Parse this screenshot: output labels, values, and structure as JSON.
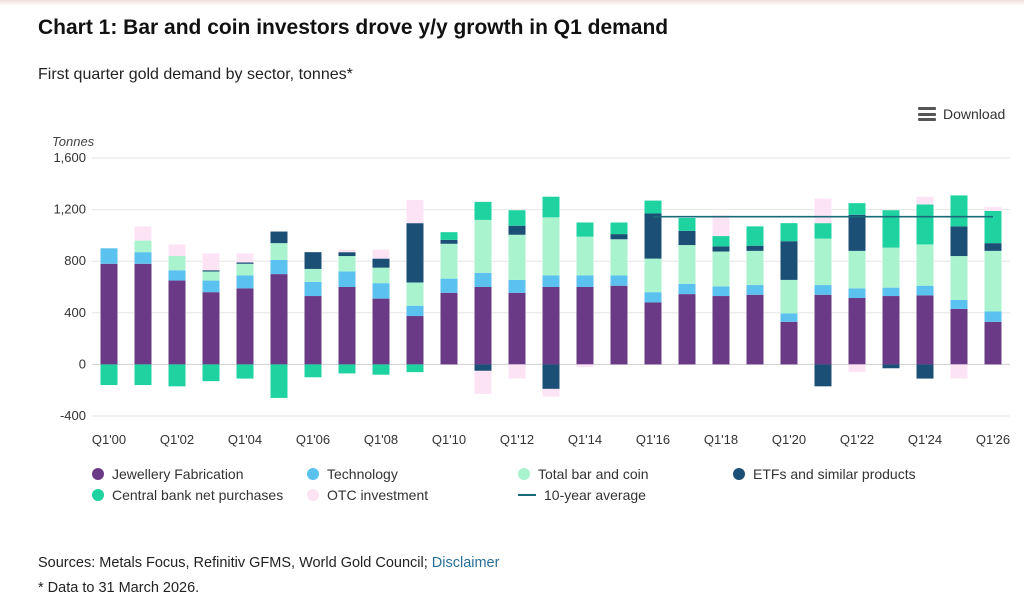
{
  "title": "Chart 1: Bar and coin investors drove y/y growth in Q1 demand",
  "subtitle": "First quarter gold demand by sector, tonnes*",
  "download_label": "Download",
  "sources_text": "Sources: Metals Focus, Refinitiv GFMS, World Gold Council; ",
  "disclaimer_label": "Disclaimer",
  "footnote": "* Data to 31 March 2026.",
  "colors": {
    "jewellery": "#6b3a87",
    "technology": "#5bc2ef",
    "barcoin": "#a9f3cf",
    "etf": "#1c4f75",
    "central_bank": "#1fd3a0",
    "otc": "#fde4f5",
    "average": "#1a6b7a"
  },
  "chart_data": {
    "type": "bar",
    "stacked": true,
    "title": "Chart 1: Bar and coin investors drove y/y growth in Q1 demand",
    "subtitle": "First quarter gold demand by sector, tonnes*",
    "ylabel": "Tonnes",
    "xlabel": "",
    "ylim": [
      -400,
      1600
    ],
    "yticks": [
      1600,
      1200,
      800,
      400,
      0,
      -400
    ],
    "ytick_labels": [
      "1,600",
      "1,200",
      "800",
      "400",
      "0",
      "-400"
    ],
    "categories": [
      "Q1'00",
      "Q1'01",
      "Q1'02",
      "Q1'03",
      "Q1'04",
      "Q1'05",
      "Q1'06",
      "Q1'07",
      "Q1'08",
      "Q1'09",
      "Q1'10",
      "Q1'11",
      "Q1'12",
      "Q1'13",
      "Q1'14",
      "Q1'15",
      "Q1'16",
      "Q1'17",
      "Q1'18",
      "Q1'19",
      "Q1'20",
      "Q1'21",
      "Q1'22",
      "Q1'23",
      "Q1'24",
      "Q1'25",
      "Q1'26"
    ],
    "xtick_labels": [
      "Q1'00",
      "Q1'02",
      "Q1'04",
      "Q1'06",
      "Q1'08",
      "Q1'10",
      "Q1'12",
      "Q1'14",
      "Q1'16",
      "Q1'18",
      "Q1'20",
      "Q1'22",
      "Q1'24",
      "Q1'26"
    ],
    "series": [
      {
        "name": "Jewellery Fabrication",
        "key": "jewellery",
        "values": [
          780,
          780,
          650,
          560,
          590,
          700,
          530,
          600,
          510,
          375,
          555,
          600,
          555,
          600,
          600,
          610,
          480,
          545,
          530,
          540,
          330,
          540,
          515,
          530,
          535,
          430,
          330
        ]
      },
      {
        "name": "Technology",
        "key": "technology",
        "values": [
          120,
          90,
          80,
          90,
          100,
          110,
          110,
          120,
          120,
          80,
          110,
          110,
          100,
          90,
          90,
          80,
          80,
          80,
          75,
          75,
          65,
          75,
          75,
          65,
          75,
          70,
          80
        ]
      },
      {
        "name": "Total bar and coin",
        "key": "barcoin",
        "values": [
          0,
          90,
          110,
          70,
          90,
          130,
          100,
          120,
          120,
          180,
          270,
          410,
          350,
          450,
          300,
          280,
          260,
          300,
          270,
          265,
          260,
          360,
          290,
          310,
          320,
          340,
          470
        ]
      },
      {
        "name": "ETFs and similar products",
        "key": "etf",
        "values": [
          0,
          0,
          0,
          10,
          10,
          90,
          130,
          30,
          70,
          460,
          30,
          -50,
          70,
          -190,
          0,
          40,
          350,
          110,
          40,
          40,
          300,
          -170,
          280,
          -30,
          -110,
          230,
          60
        ]
      },
      {
        "name": "Central bank net purchases",
        "key": "central_bank",
        "values": [
          -160,
          -160,
          -170,
          -130,
          -110,
          -260,
          -100,
          -70,
          -80,
          -60,
          60,
          140,
          120,
          160,
          110,
          90,
          100,
          100,
          80,
          150,
          140,
          120,
          90,
          290,
          310,
          240,
          250
        ]
      },
      {
        "name": "OTC investment",
        "key": "otc",
        "values": [
          0,
          110,
          90,
          130,
          70,
          0,
          0,
          20,
          70,
          180,
          0,
          -180,
          -110,
          -60,
          -20,
          0,
          0,
          0,
          160,
          0,
          0,
          190,
          -60,
          0,
          60,
          -110,
          30
        ]
      }
    ],
    "average": {
      "name": "10-year average",
      "start_index": 16,
      "end_index": 26,
      "value": 1145
    },
    "legend": [
      "Jewellery Fabrication",
      "Technology",
      "Total bar and coin",
      "ETFs and similar products",
      "Central bank net purchases",
      "OTC investment",
      "10-year average"
    ],
    "legend_position": "bottom"
  }
}
